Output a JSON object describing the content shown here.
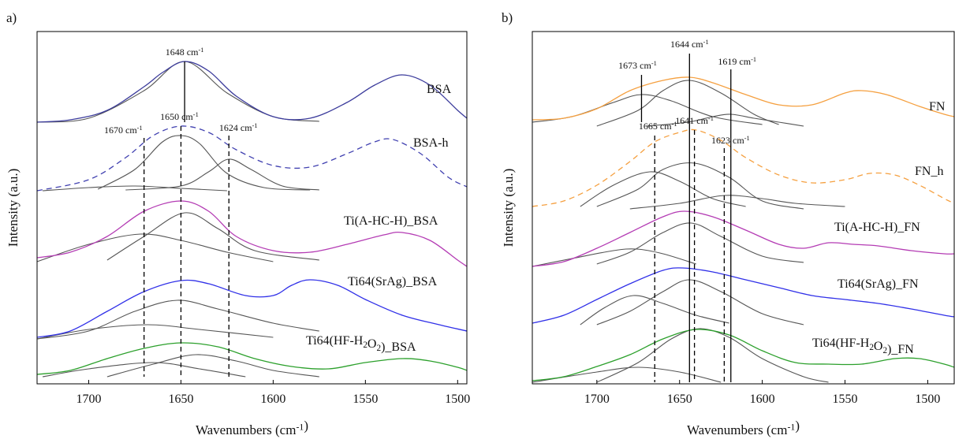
{
  "chart_data": [
    {
      "type": "line",
      "panel_label": "a)",
      "xlabel": "Wavenumbers (cm-1)",
      "ylabel": "Intensity (a.u.)",
      "xlim": [
        1728,
        1495
      ],
      "ylim": [
        0,
        447
      ],
      "xticks": [
        1700,
        1650,
        1600,
        1550,
        1500
      ],
      "component_color": "#555555",
      "series": [
        {
          "name": "BSA",
          "color": "#3c3c9c",
          "dashed": false,
          "x": [
            1728,
            1710,
            1690,
            1670,
            1660,
            1648,
            1635,
            1620,
            1600,
            1580,
            1560,
            1545,
            1530,
            1515,
            1500,
            1495
          ],
          "values": [
            332,
            335,
            347,
            377,
            395,
            409,
            397,
            365,
            339,
            337,
            357,
            379,
            392,
            379,
            347,
            337
          ]
        },
        {
          "name": "BSA-h",
          "color": "#4040b0",
          "dashed": true,
          "x": [
            1728,
            1700,
            1680,
            1665,
            1650,
            1635,
            1620,
            1600,
            1580,
            1560,
            1545,
            1535,
            1520,
            1505,
            1495
          ],
          "values": [
            245,
            259,
            287,
            315,
            327,
            319,
            297,
            277,
            275,
            292,
            307,
            310,
            292,
            262,
            250
          ]
        },
        {
          "name": "Ti(A-HC-H)_BSA",
          "color": "#b43cb4",
          "dashed": false,
          "x": [
            1728,
            1710,
            1690,
            1670,
            1650,
            1635,
            1620,
            1600,
            1580,
            1560,
            1540,
            1530,
            1515,
            1500,
            1495
          ],
          "values": [
            160,
            167,
            187,
            219,
            232,
            219,
            187,
            169,
            167,
            177,
            189,
            192,
            182,
            157,
            149
          ]
        },
        {
          "name": "Ti64(SrAg)_BSA",
          "color": "#3030e8",
          "dashed": false,
          "x": [
            1728,
            1710,
            1690,
            1670,
            1650,
            1635,
            1615,
            1600,
            1590,
            1580,
            1565,
            1550,
            1530,
            1510,
            1495
          ],
          "values": [
            59,
            67,
            92,
            117,
            131,
            127,
            112,
            112,
            125,
            132,
            125,
            107,
            87,
            75,
            67
          ]
        },
        {
          "name": "Ti64(HF-H2O2)_BSA",
          "color": "#2ca02c",
          "dashed": false,
          "x": [
            1728,
            1710,
            1690,
            1670,
            1650,
            1630,
            1610,
            1590,
            1570,
            1550,
            1530,
            1515,
            1500,
            1495
          ],
          "values": [
            12,
            17,
            32,
            45,
            52,
            47,
            32,
            22,
            19,
            27,
            32,
            29,
            21,
            17
          ]
        }
      ],
      "components": [
        {
          "x": [
            1728,
            1700,
            1670,
            1648,
            1625,
            1600,
            1575
          ],
          "values": [
            332,
            337,
            372,
            409,
            369,
            339,
            333
          ]
        },
        {
          "x": [
            1695,
            1675,
            1660,
            1650,
            1640,
            1625,
            1605,
            1580
          ],
          "values": [
            247,
            272,
            307,
            315,
            305,
            267,
            249,
            246
          ]
        },
        {
          "x": [
            1680,
            1650,
            1635,
            1624,
            1612,
            1595,
            1575
          ],
          "values": [
            246,
            251,
            269,
            285,
            272,
            251,
            246
          ]
        },
        {
          "x": [
            1725,
            1700,
            1675,
            1650,
            1625
          ],
          "values": [
            245,
            249,
            251,
            248,
            245
          ]
        },
        {
          "x": [
            1690,
            1670,
            1648,
            1630,
            1610,
            1575
          ],
          "values": [
            157,
            187,
            217,
            197,
            169,
            157
          ]
        },
        {
          "x": [
            1728,
            1700,
            1672,
            1650,
            1625,
            1600
          ],
          "values": [
            155,
            177,
            190,
            182,
            167,
            155
          ]
        },
        {
          "x": [
            1728,
            1700,
            1675,
            1652,
            1630,
            1600,
            1575
          ],
          "values": [
            57,
            67,
            92,
            106,
            95,
            77,
            67
          ]
        },
        {
          "x": [
            1728,
            1700,
            1668,
            1640,
            1600
          ],
          "values": [
            57,
            69,
            75,
            69,
            59
          ]
        },
        {
          "x": [
            1690,
            1665,
            1642,
            1620,
            1600,
            1575
          ],
          "values": [
            9,
            25,
            37,
            29,
            17,
            9
          ]
        },
        {
          "x": [
            1725,
            1700,
            1665,
            1640,
            1615
          ],
          "values": [
            9,
            19,
            27,
            19,
            9
          ]
        }
      ],
      "annotations": [
        {
          "label": "1648 cm-1",
          "x": 1648,
          "y": [
            409,
            332
          ],
          "dashed": false
        },
        {
          "label": "1670 cm-1",
          "x": 1670,
          "y": [
            312,
            9
          ],
          "dashed": true
        },
        {
          "label": "1650 cm-1",
          "x": 1650,
          "y": [
            327,
            9
          ],
          "dashed": true
        },
        {
          "label": "1624 cm-1",
          "x": 1624,
          "y": [
            315,
            9
          ],
          "dashed": true
        }
      ]
    },
    {
      "type": "line",
      "panel_label": "b)",
      "xlabel": "Wavenumbers (cm-1)",
      "ylabel": "Intensity (a.u.)",
      "xlim": [
        1739,
        1484
      ],
      "ylim": [
        0,
        447
      ],
      "xticks": [
        1700,
        1650,
        1600,
        1550,
        1500
      ],
      "component_color": "#555555",
      "series": [
        {
          "name": "FN",
          "color": "#f5a040",
          "dashed": false,
          "x": [
            1739,
            1720,
            1700,
            1680,
            1660,
            1644,
            1630,
            1610,
            1590,
            1570,
            1550,
            1540,
            1525,
            1505,
            1490,
            1484
          ],
          "values": [
            335,
            337,
            349,
            372,
            385,
            389,
            382,
            367,
            354,
            354,
            369,
            372,
            367,
            352,
            342,
            339
          ]
        },
        {
          "name": "FN_h",
          "color": "#f5a040",
          "dashed": true,
          "x": [
            1739,
            1720,
            1700,
            1680,
            1665,
            1650,
            1640,
            1625,
            1610,
            1590,
            1570,
            1550,
            1535,
            1520,
            1505,
            1490,
            1484
          ],
          "values": [
            225,
            232,
            252,
            282,
            307,
            319,
            322,
            309,
            287,
            265,
            255,
            259,
            267,
            265,
            252,
            235,
            229
          ]
        },
        {
          "name": "Ti(A-HC-H)_FN",
          "color": "#b43cb4",
          "dashed": false,
          "x": [
            1739,
            1720,
            1700,
            1680,
            1660,
            1647,
            1630,
            1610,
            1590,
            1575,
            1560,
            1545,
            1530,
            1510,
            1490,
            1484
          ],
          "values": [
            149,
            155,
            172,
            192,
            212,
            219,
            212,
            195,
            177,
            172,
            179,
            177,
            175,
            169,
            165,
            165
          ]
        },
        {
          "name": "Ti64(SrAg)_FN",
          "color": "#3030e8",
          "dashed": false,
          "x": [
            1739,
            1720,
            1700,
            1680,
            1660,
            1648,
            1630,
            1610,
            1590,
            1570,
            1550,
            1530,
            1510,
            1490,
            1484
          ],
          "values": [
            77,
            87,
            107,
            127,
            144,
            147,
            142,
            132,
            122,
            112,
            107,
            102,
            95,
            87,
            85
          ]
        },
        {
          "name": "Ti64(HF-H2O2)_FN",
          "color": "#2ca02c",
          "dashed": false,
          "x": [
            1739,
            1720,
            1700,
            1680,
            1660,
            1640,
            1620,
            1600,
            1580,
            1560,
            1540,
            1520,
            1505,
            1490,
            1484
          ],
          "values": [
            4,
            9,
            22,
            37,
            57,
            69,
            62,
            42,
            27,
            25,
            25,
            32,
            32,
            25,
            21
          ]
        }
      ],
      "components": [
        {
          "x": [
            1739,
            1715,
            1690,
            1673,
            1655,
            1630,
            1600
          ],
          "values": [
            332,
            339,
            357,
            367,
            359,
            339,
            329
          ]
        },
        {
          "x": [
            1700,
            1675,
            1660,
            1644,
            1625,
            1605,
            1590
          ],
          "values": [
            327,
            347,
            372,
            385,
            369,
            342,
            329
          ]
        },
        {
          "x": [
            1670,
            1645,
            1630,
            1619,
            1605,
            1590,
            1575
          ],
          "values": [
            327,
            332,
            339,
            342,
            337,
            332,
            327
          ]
        },
        {
          "x": [
            1710,
            1690,
            1668,
            1650,
            1630,
            1610
          ],
          "values": [
            225,
            252,
            269,
            257,
            235,
            225
          ]
        },
        {
          "x": [
            1700,
            1675,
            1660,
            1641,
            1620,
            1600,
            1575
          ],
          "values": [
            225,
            247,
            272,
            280,
            262,
            232,
            222
          ]
        },
        {
          "x": [
            1680,
            1650,
            1623,
            1600,
            1580,
            1550
          ],
          "values": [
            222,
            229,
            239,
            235,
            229,
            225
          ]
        },
        {
          "x": [
            1700,
            1680,
            1660,
            1643,
            1625,
            1600,
            1575
          ],
          "values": [
            152,
            167,
            192,
            204,
            187,
            162,
            154
          ]
        },
        {
          "x": [
            1739,
            1715,
            1690,
            1676,
            1660,
            1640
          ],
          "values": [
            149,
            159,
            169,
            171,
            165,
            152
          ]
        },
        {
          "x": [
            1710,
            1695,
            1678,
            1660,
            1640,
            1620
          ],
          "values": [
            75,
            97,
            112,
            102,
            87,
            77
          ]
        },
        {
          "x": [
            1700,
            1680,
            1660,
            1644,
            1625,
            1600,
            1575
          ],
          "values": [
            75,
            92,
            117,
            132,
            117,
            89,
            75
          ]
        },
        {
          "x": [
            1700,
            1675,
            1655,
            1638,
            1620,
            1600,
            1575,
            1560
          ],
          "values": [
            2,
            27,
            57,
            70,
            59,
            32,
            9,
            2
          ]
        },
        {
          "x": [
            1739,
            1700,
            1675,
            1650,
            1625
          ],
          "values": [
            2,
            15,
            21,
            15,
            2
          ]
        }
      ],
      "annotations": [
        {
          "label": "1644 cm-1",
          "x": 1644,
          "y": [
            419,
            2
          ],
          "dashed": false
        },
        {
          "label": "1673 cm-1",
          "x": 1673,
          "y": [
            392,
            332
          ],
          "dashed": false
        },
        {
          "label": "1619 cm-1",
          "x": 1619,
          "y": [
            399,
            2
          ],
          "dashed": false
        },
        {
          "label": "1665 cm-1",
          "x": 1665,
          "y": [
            315,
            2
          ],
          "dashed": true
        },
        {
          "label": "1641 cm-1",
          "x": 1641,
          "y": [
            322,
            2
          ],
          "dashed": true
        },
        {
          "label": "1623 cm-1",
          "x": 1623,
          "y": [
            299,
            2
          ],
          "dashed": true
        }
      ]
    }
  ]
}
